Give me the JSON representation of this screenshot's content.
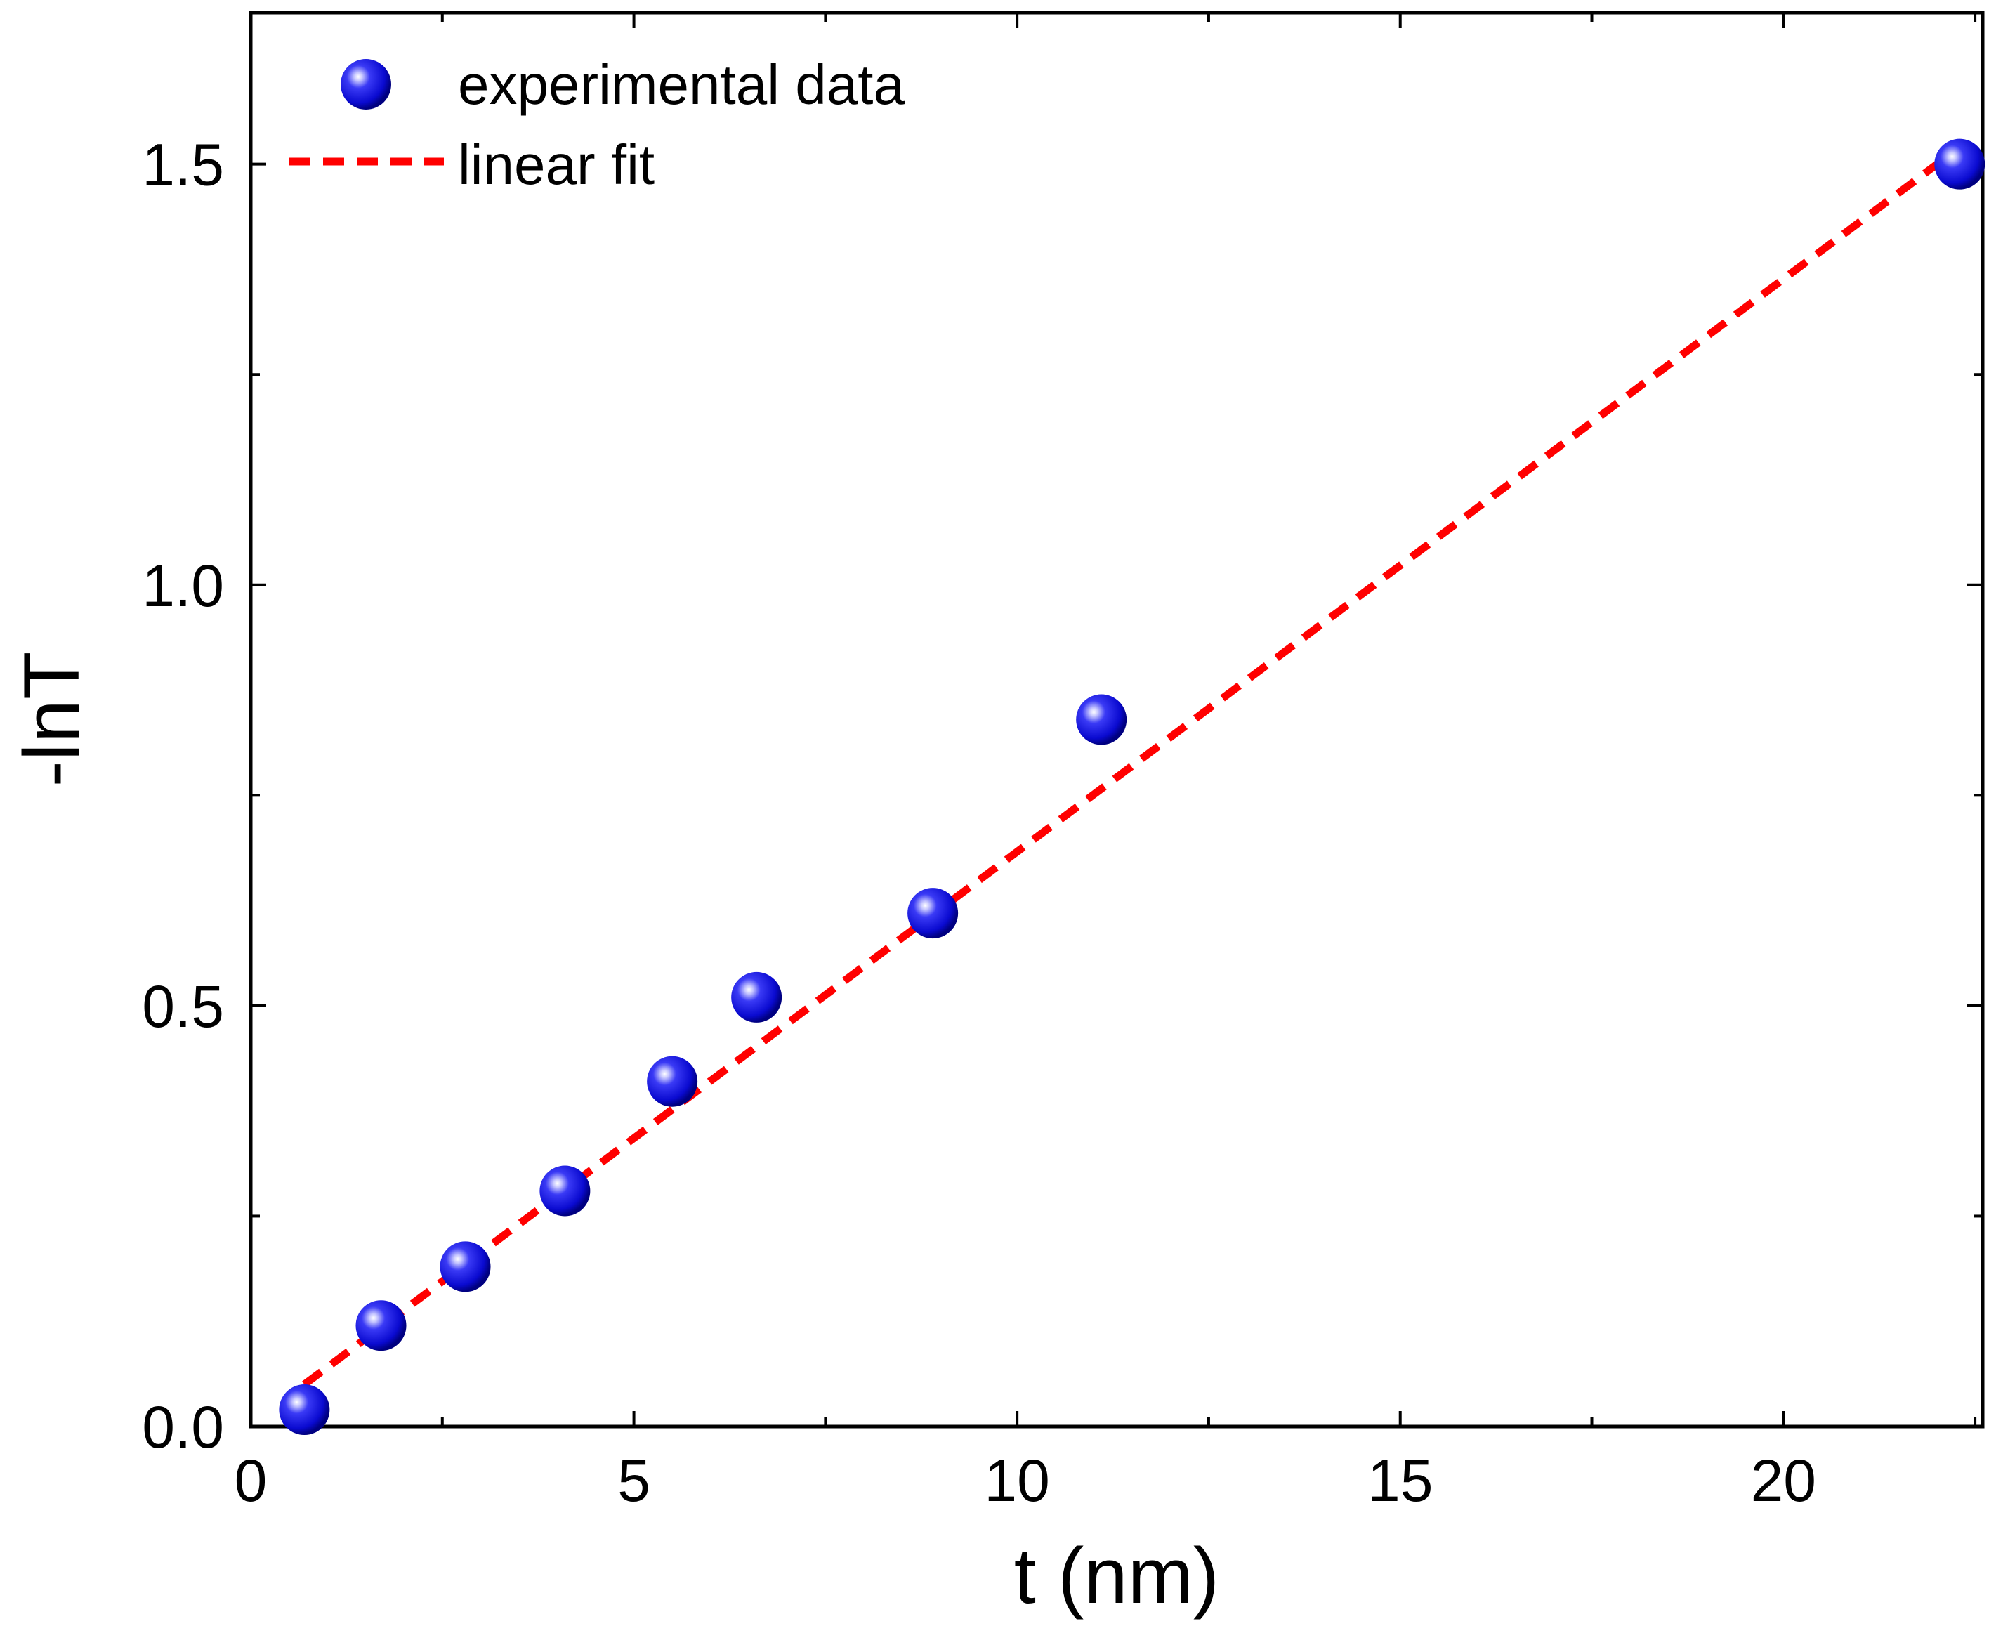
{
  "chart_data": {
    "type": "scatter",
    "title": "",
    "xlabel": "t (nm)",
    "ylabel": "-lnT",
    "xlim": [
      0,
      22.6
    ],
    "ylim": [
      0,
      1.68
    ],
    "x_ticks": [
      0,
      5,
      10,
      15,
      20
    ],
    "x_tick_labels": [
      "0",
      "5",
      "10",
      "15",
      "20"
    ],
    "y_ticks": [
      0.0,
      0.5,
      1.0,
      1.5
    ],
    "y_tick_labels": [
      "0.0",
      "0.5",
      "1.0",
      "1.5"
    ],
    "grid": false,
    "legend_position": "top-left",
    "series": [
      {
        "name": "experimental data",
        "kind": "scatter",
        "color": "#1010e0",
        "x": [
          0.7,
          1.7,
          2.8,
          4.1,
          5.5,
          6.6,
          8.9,
          11.1,
          22.3
        ],
        "y": [
          0.02,
          0.12,
          0.19,
          0.28,
          0.41,
          0.51,
          0.61,
          0.84,
          1.5
        ]
      },
      {
        "name": "linear fit",
        "kind": "line",
        "style": "dashed",
        "color": "#ff0000",
        "x": [
          0.7,
          22.3
        ],
        "y": [
          0.05,
          1.52
        ]
      }
    ]
  }
}
